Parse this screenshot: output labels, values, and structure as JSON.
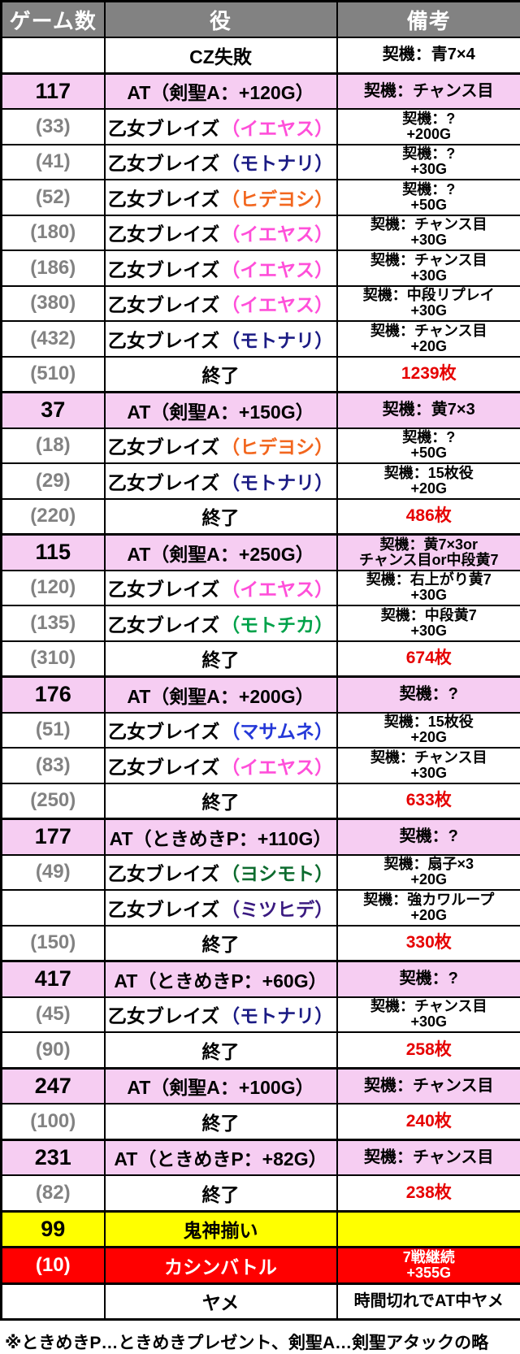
{
  "table": {
    "columns": [
      "ゲーム数",
      "役",
      "備考"
    ],
    "rows": [
      {
        "games": "",
        "role": "CZ失敗",
        "type": "plain",
        "notes": [
          "契機：青7×4"
        ]
      },
      {
        "games": "117",
        "role": "AT（剣聖A：+120G）",
        "type": "at",
        "notes": [
          "契機：チャンス目"
        ]
      },
      {
        "games": "(33)",
        "role": "乙女ブレイズ",
        "character": "イエヤス",
        "type": "plain",
        "notes": [
          "契機：?",
          "+200G"
        ]
      },
      {
        "games": "(41)",
        "role": "乙女ブレイズ",
        "character": "モトナリ",
        "type": "plain",
        "notes": [
          "契機：?",
          "+30G"
        ]
      },
      {
        "games": "(52)",
        "role": "乙女ブレイズ",
        "character": "ヒデヨシ",
        "type": "plain",
        "notes": [
          "契機：?",
          "+50G"
        ]
      },
      {
        "games": "(180)",
        "role": "乙女ブレイズ",
        "character": "イエヤス",
        "type": "plain",
        "notes": [
          "契機：チャンス目",
          "+30G"
        ]
      },
      {
        "games": "(186)",
        "role": "乙女ブレイズ",
        "character": "イエヤス",
        "type": "plain",
        "notes": [
          "契機：チャンス目",
          "+30G"
        ]
      },
      {
        "games": "(380)",
        "role": "乙女ブレイズ",
        "character": "イエヤス",
        "type": "plain",
        "notes": [
          "契機：中段リプレイ",
          "+30G"
        ]
      },
      {
        "games": "(432)",
        "role": "乙女ブレイズ",
        "character": "モトナリ",
        "type": "plain",
        "notes": [
          "契機：チャンス目",
          "+20G"
        ]
      },
      {
        "games": "(510)",
        "role": "終了",
        "type": "end",
        "notes": [
          "1239枚"
        ]
      },
      {
        "games": "37",
        "role": "AT（剣聖A：+150G）",
        "type": "at",
        "notes": [
          "契機：黄7×3"
        ]
      },
      {
        "games": "(18)",
        "role": "乙女ブレイズ",
        "character": "ヒデヨシ",
        "type": "plain",
        "notes": [
          "契機：?",
          "+50G"
        ]
      },
      {
        "games": "(29)",
        "role": "乙女ブレイズ",
        "character": "モトナリ",
        "type": "plain",
        "notes": [
          "契機：15枚役",
          "+20G"
        ]
      },
      {
        "games": "(220)",
        "role": "終了",
        "type": "end",
        "notes": [
          "486枚"
        ]
      },
      {
        "games": "115",
        "role": "AT（剣聖A：+250G）",
        "type": "at",
        "notes": [
          "契機：黄7×3or",
          "チャンス目or中段黄7"
        ]
      },
      {
        "games": "(120)",
        "role": "乙女ブレイズ",
        "character": "イエヤス",
        "type": "plain",
        "notes": [
          "契機：右上がり黄7",
          "+30G"
        ]
      },
      {
        "games": "(135)",
        "role": "乙女ブレイズ",
        "character": "モトチカ",
        "type": "plain",
        "notes": [
          "契機：中段黄7",
          "+30G"
        ]
      },
      {
        "games": "(310)",
        "role": "終了",
        "type": "end",
        "notes": [
          "674枚"
        ]
      },
      {
        "games": "176",
        "role": "AT（剣聖A：+200G）",
        "type": "at",
        "notes": [
          "契機：?"
        ]
      },
      {
        "games": "(51)",
        "role": "乙女ブレイズ",
        "character": "マサムネ",
        "type": "plain",
        "notes": [
          "契機：15枚役",
          "+20G"
        ]
      },
      {
        "games": "(83)",
        "role": "乙女ブレイズ",
        "character": "イエヤス",
        "type": "plain",
        "notes": [
          "契機：チャンス目",
          "+30G"
        ]
      },
      {
        "games": "(250)",
        "role": "終了",
        "type": "end",
        "notes": [
          "633枚"
        ]
      },
      {
        "games": "177",
        "role": "AT（ときめきP：+110G）",
        "type": "at",
        "notes": [
          "契機：?"
        ]
      },
      {
        "games": "(49)",
        "role": "乙女ブレイズ",
        "character": "ヨシモト",
        "type": "plain",
        "notes": [
          "契機：扇子×3",
          "+20G"
        ]
      },
      {
        "games": "",
        "role": "乙女ブレイズ",
        "character": "ミツヒデ",
        "type": "plain",
        "notes": [
          "契機：強カワループ",
          "+20G"
        ]
      },
      {
        "games": "(150)",
        "role": "終了",
        "type": "end",
        "notes": [
          "330枚"
        ]
      },
      {
        "games": "417",
        "role": "AT（ときめきP：+60G）",
        "type": "at",
        "notes": [
          "契機：?"
        ]
      },
      {
        "games": "(45)",
        "role": "乙女ブレイズ",
        "character": "モトナリ",
        "type": "plain",
        "notes": [
          "契機：チャンス目",
          "+30G"
        ]
      },
      {
        "games": "(90)",
        "role": "終了",
        "type": "end",
        "notes": [
          "258枚"
        ]
      },
      {
        "games": "247",
        "role": "AT（剣聖A：+100G）",
        "type": "at",
        "notes": [
          "契機：チャンス目"
        ]
      },
      {
        "games": "(100)",
        "role": "終了",
        "type": "end",
        "notes": [
          "240枚"
        ]
      },
      {
        "games": "231",
        "role": "AT（ときめきP：+82G）",
        "type": "at",
        "notes": [
          "契機：チャンス目"
        ]
      },
      {
        "games": "(82)",
        "role": "終了",
        "type": "end",
        "notes": [
          "238枚"
        ]
      },
      {
        "games": "99",
        "role": "鬼神揃い",
        "type": "gold",
        "notes": []
      },
      {
        "games": "(10)",
        "role": "カシンバトル",
        "type": "battle",
        "notes": [
          "7戦継続",
          "+355G"
        ]
      },
      {
        "games": "",
        "role": "ヤメ",
        "type": "plain",
        "notes": [
          "時間切れでAT中ヤメ"
        ]
      }
    ]
  },
  "character_colors": {
    "イエヤス": "#ff4fd9",
    "モトナリ": "#1b1b84",
    "ヒデヨシ": "#f2661e",
    "モトチカ": "#00a24a",
    "マサムネ": "#2438d8",
    "ヨシモト": "#0c6b2e",
    "ミツヒデ": "#3a1a80"
  },
  "colors": {
    "header_bg": "#828282",
    "header_text": "#ffffff",
    "at_row_bg": "#f6cdf2",
    "gold_row_bg": "#ffff00",
    "battle_row_bg": "#ff0000",
    "battle_row_text": "#ffffff",
    "payout_text": "#e60000",
    "paren_games_text": "#828282",
    "border": "#000000"
  },
  "footnote": "※ときめきP…ときめきプレゼント、剣聖A…剣聖アタックの略",
  "chart_data": {
    "type": "table",
    "title": "パチスロ実戦データ（ゲーム数・役・備考）",
    "columns": [
      "ゲーム数",
      "役",
      "備考"
    ],
    "rows": [
      [
        "",
        "CZ失敗",
        "契機：青7×4"
      ],
      [
        "117",
        "AT（剣聖A：+120G）",
        "契機：チャンス目"
      ],
      [
        "(33)",
        "乙女ブレイズ（イエヤス）",
        "契機：? +200G"
      ],
      [
        "(41)",
        "乙女ブレイズ（モトナリ）",
        "契機：? +30G"
      ],
      [
        "(52)",
        "乙女ブレイズ（ヒデヨシ）",
        "契機：? +50G"
      ],
      [
        "(180)",
        "乙女ブレイズ（イエヤス）",
        "契機：チャンス目 +30G"
      ],
      [
        "(186)",
        "乙女ブレイズ（イエヤス）",
        "契機：チャンス目 +30G"
      ],
      [
        "(380)",
        "乙女ブレイズ（イエヤス）",
        "契機：中段リプレイ +30G"
      ],
      [
        "(432)",
        "乙女ブレイズ（モトナリ）",
        "契機：チャンス目 +20G"
      ],
      [
        "(510)",
        "終了",
        "1239枚"
      ],
      [
        "37",
        "AT（剣聖A：+150G）",
        "契機：黄7×3"
      ],
      [
        "(18)",
        "乙女ブレイズ（ヒデヨシ）",
        "契機：? +50G"
      ],
      [
        "(29)",
        "乙女ブレイズ（モトナリ）",
        "契機：15枚役 +20G"
      ],
      [
        "(220)",
        "終了",
        "486枚"
      ],
      [
        "115",
        "AT（剣聖A：+250G）",
        "契機：黄7×3or チャンス目or中段黄7"
      ],
      [
        "(120)",
        "乙女ブレイズ（イエヤス）",
        "契機：右上がり黄7 +30G"
      ],
      [
        "(135)",
        "乙女ブレイズ（モトチカ）",
        "契機：中段黄7 +30G"
      ],
      [
        "(310)",
        "終了",
        "674枚"
      ],
      [
        "176",
        "AT（剣聖A：+200G）",
        "契機：?"
      ],
      [
        "(51)",
        "乙女ブレイズ（マサムネ）",
        "契機：15枚役 +20G"
      ],
      [
        "(83)",
        "乙女ブレイズ（イエヤス）",
        "契機：チャンス目 +30G"
      ],
      [
        "(250)",
        "終了",
        "633枚"
      ],
      [
        "177",
        "AT（ときめきP：+110G）",
        "契機：?"
      ],
      [
        "(49)",
        "乙女ブレイズ（ヨシモト）",
        "契機：扇子×3 +20G"
      ],
      [
        "",
        "乙女ブレイズ（ミツヒデ）",
        "契機：強カワループ +20G"
      ],
      [
        "(150)",
        "終了",
        "330枚"
      ],
      [
        "417",
        "AT（ときめきP：+60G）",
        "契機：?"
      ],
      [
        "(45)",
        "乙女ブレイズ（モトナリ）",
        "契機：チャンス目 +30G"
      ],
      [
        "(90)",
        "終了",
        "258枚"
      ],
      [
        "247",
        "AT（剣聖A：+100G）",
        "契機：チャンス目"
      ],
      [
        "(100)",
        "終了",
        "240枚"
      ],
      [
        "231",
        "AT（ときめきP：+82G）",
        "契機：チャンス目"
      ],
      [
        "(82)",
        "終了",
        "238枚"
      ],
      [
        "99",
        "鬼神揃い",
        ""
      ],
      [
        "(10)",
        "カシンバトル",
        "7戦継続 +355G"
      ],
      [
        "",
        "ヤメ",
        "時間切れでAT中ヤメ"
      ]
    ]
  }
}
